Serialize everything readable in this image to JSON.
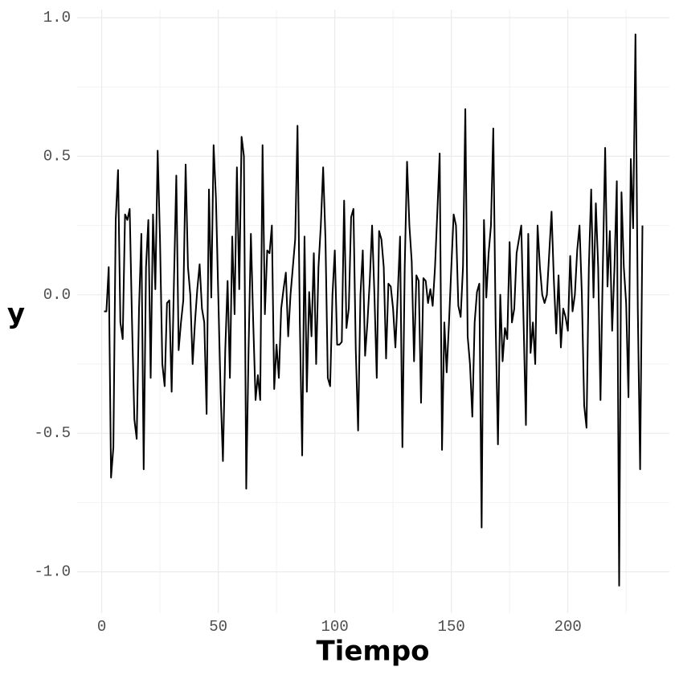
{
  "chart_data": {
    "type": "line",
    "x_label": "Tiempo",
    "y_label": "y",
    "x": [
      1,
      2,
      3,
      4,
      5,
      6,
      7,
      8,
      9,
      10,
      11,
      12,
      13,
      14,
      15,
      16,
      17,
      18,
      19,
      20,
      21,
      22,
      23,
      24,
      25,
      26,
      27,
      28,
      29,
      30,
      31,
      32,
      33,
      34,
      35,
      36,
      37,
      38,
      39,
      40,
      41,
      42,
      43,
      44,
      45,
      46,
      47,
      48,
      49,
      50,
      51,
      52,
      53,
      54,
      55,
      56,
      57,
      58,
      59,
      60,
      61,
      62,
      63,
      64,
      65,
      66,
      67,
      68,
      69,
      70,
      71,
      72,
      73,
      74,
      75,
      76,
      77,
      78,
      79,
      80,
      81,
      82,
      83,
      84,
      85,
      86,
      87,
      88,
      89,
      90,
      91,
      92,
      93,
      94,
      95,
      96,
      97,
      98,
      99,
      100,
      101,
      102,
      103,
      104,
      105,
      106,
      107,
      108,
      109,
      110,
      111,
      112,
      113,
      114,
      115,
      116,
      117,
      118,
      119,
      120,
      121,
      122,
      123,
      124,
      125,
      126,
      127,
      128,
      129,
      130,
      131,
      132,
      133,
      134,
      135,
      136,
      137,
      138,
      139,
      140,
      141,
      142,
      143,
      144,
      145,
      146,
      147,
      148,
      149,
      150,
      151,
      152,
      153,
      154,
      155,
      156,
      157,
      158,
      159,
      160,
      161,
      162,
      163,
      164,
      165,
      166,
      167,
      168,
      169,
      170,
      171,
      172,
      173,
      174,
      175,
      176,
      177,
      178,
      179,
      180,
      181,
      182,
      183,
      184,
      185,
      186,
      187,
      188,
      189,
      190,
      191,
      192,
      193,
      194,
      195,
      196,
      197,
      198,
      199,
      200,
      201,
      202,
      203,
      204,
      205,
      206,
      207,
      208,
      209,
      210,
      211,
      212,
      213,
      214,
      215,
      216,
      217,
      218,
      219,
      220,
      221,
      222,
      223,
      224,
      225,
      226,
      227,
      228,
      229,
      230,
      231,
      232
    ],
    "series": [
      {
        "color": "#000000",
        "values": [
          -0.06,
          -0.06,
          0.1,
          -0.66,
          -0.55,
          0.27,
          0.45,
          -0.1,
          -0.16,
          0.29,
          0.27,
          0.31,
          -0.1,
          -0.45,
          -0.52,
          -0.05,
          0.22,
          -0.63,
          0.1,
          0.27,
          -0.3,
          0.29,
          0.02,
          0.52,
          0.2,
          -0.25,
          -0.33,
          -0.03,
          -0.02,
          -0.35,
          0.05,
          0.43,
          -0.2,
          -0.1,
          -0.02,
          0.47,
          0.1,
          0.0,
          -0.25,
          -0.1,
          0.02,
          0.11,
          -0.05,
          -0.1,
          -0.43,
          0.38,
          -0.01,
          0.54,
          0.35,
          0.0,
          -0.35,
          -0.6,
          -0.2,
          0.05,
          -0.3,
          0.21,
          -0.07,
          0.46,
          0.02,
          0.57,
          0.5,
          -0.7,
          -0.2,
          0.22,
          -0.1,
          -0.38,
          -0.29,
          -0.38,
          0.54,
          -0.07,
          0.16,
          0.15,
          0.25,
          -0.34,
          -0.18,
          -0.3,
          -0.05,
          0.02,
          0.08,
          -0.15,
          0.0,
          0.1,
          0.2,
          0.61,
          -0.1,
          -0.58,
          0.21,
          -0.35,
          0.01,
          -0.15,
          0.15,
          -0.25,
          0.1,
          0.25,
          0.46,
          0.2,
          -0.3,
          -0.33,
          0.0,
          0.16,
          -0.18,
          -0.18,
          -0.17,
          0.34,
          -0.12,
          -0.05,
          0.28,
          0.31,
          -0.2,
          -0.49,
          0.0,
          0.16,
          -0.22,
          -0.1,
          0.05,
          0.25,
          0.0,
          -0.3,
          0.23,
          0.2,
          0.1,
          -0.23,
          0.04,
          0.03,
          -0.05,
          -0.19,
          0.0,
          0.21,
          -0.55,
          0.1,
          0.48,
          0.25,
          0.12,
          -0.24,
          0.07,
          0.05,
          -0.39,
          0.06,
          0.05,
          -0.03,
          0.02,
          -0.04,
          0.1,
          0.3,
          0.51,
          -0.56,
          -0.1,
          -0.28,
          -0.1,
          0.1,
          0.29,
          0.25,
          -0.04,
          -0.08,
          0.1,
          0.67,
          -0.15,
          -0.25,
          -0.44,
          -0.1,
          0.01,
          0.04,
          -0.84,
          0.27,
          -0.01,
          0.15,
          0.25,
          0.6,
          -0.1,
          -0.54,
          0.0,
          -0.24,
          -0.12,
          -0.16,
          0.19,
          -0.1,
          -0.05,
          0.15,
          0.2,
          0.25,
          -0.1,
          -0.47,
          0.22,
          -0.21,
          -0.1,
          -0.25,
          0.25,
          0.1,
          0.0,
          -0.03,
          0.0,
          0.15,
          0.3,
          0.05,
          -0.14,
          0.07,
          -0.19,
          -0.05,
          -0.08,
          -0.13,
          0.14,
          -0.06,
          0.0,
          0.16,
          0.25,
          0.0,
          -0.4,
          -0.48,
          0.1,
          0.38,
          -0.01,
          0.33,
          0.1,
          -0.38,
          0.1,
          0.53,
          0.03,
          0.23,
          -0.13,
          0.1,
          0.41,
          -1.05,
          0.37,
          0.1,
          -0.03,
          -0.37,
          0.49,
          0.24,
          0.94,
          -0.05,
          -0.63,
          0.25
        ]
      }
    ],
    "xlim": [
      -10.55,
      243.55
    ],
    "xticks": [
      0,
      50,
      100,
      150,
      200
    ],
    "x_minor_ticks": [
      25,
      75,
      125,
      175,
      225
    ],
    "ylim": [
      -1.149,
      1.029
    ],
    "yticks": [
      {
        "value": -1,
        "label": "-1.0"
      },
      -0.5,
      {
        "value": 0,
        "label": "0.0"
      },
      0.5,
      {
        "value": 1,
        "label": "1.0"
      }
    ],
    "y_minor_ticks": [
      -0.75,
      -0.25,
      0.25,
      0.75
    ],
    "grid": true
  }
}
